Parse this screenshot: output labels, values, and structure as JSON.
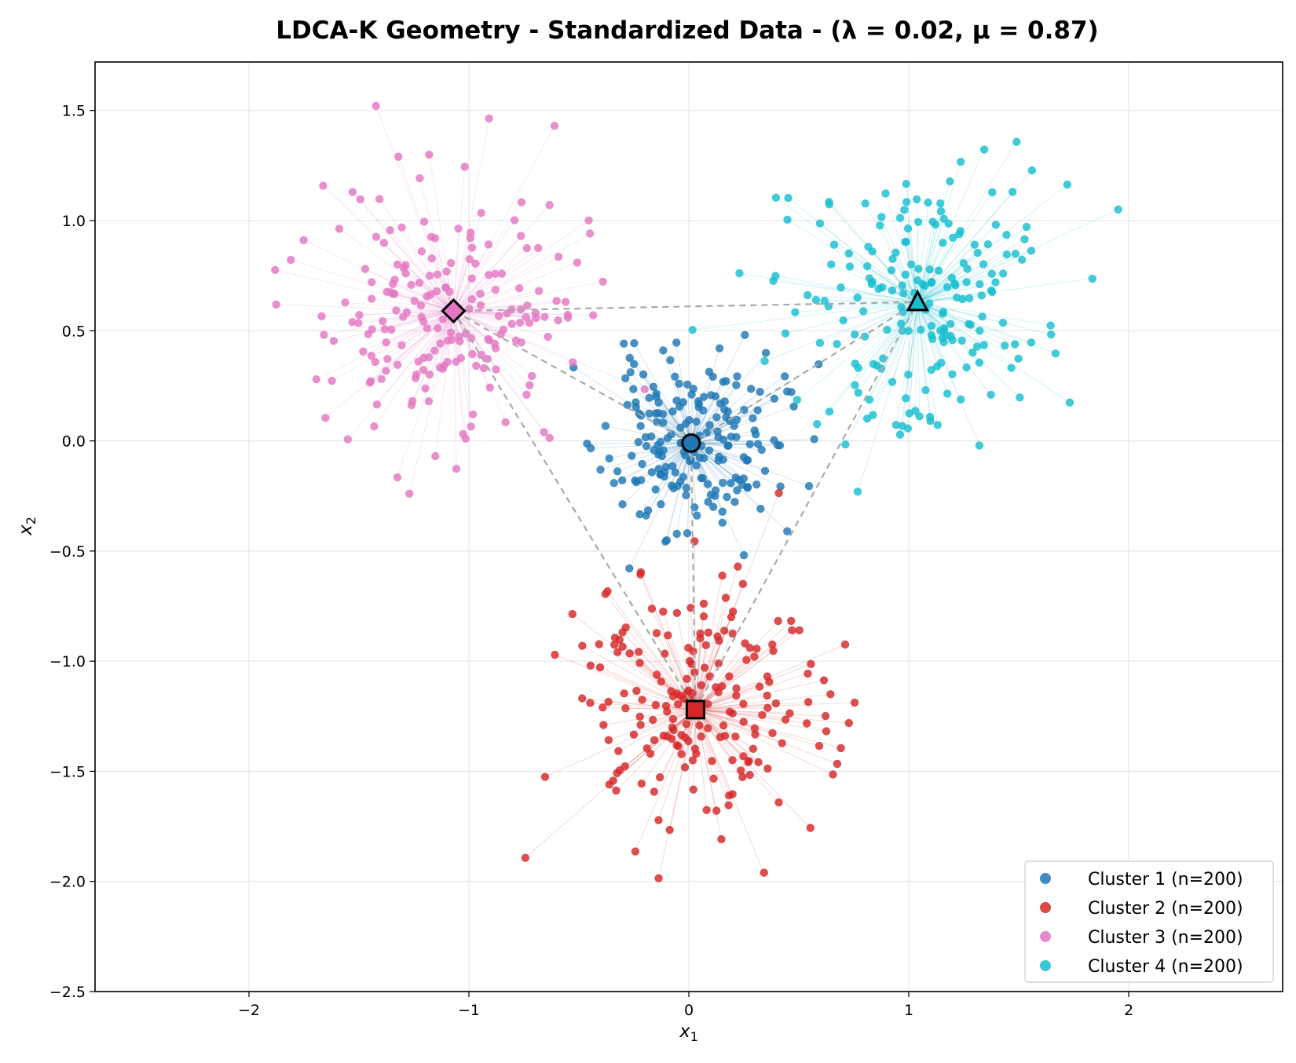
{
  "chart_data": {
    "type": "scatter",
    "title": "LDCA-K Geometry - Standardized Data - (λ = 0.02, μ = 0.87)",
    "xlabel": "x",
    "xlabel_sub": "1",
    "ylabel": "x",
    "ylabel_sub": "2",
    "xlim": [
      -2.7,
      2.7
    ],
    "ylim": [
      -2.5,
      1.72
    ],
    "xticks": [
      -2,
      -1,
      0,
      1,
      2
    ],
    "xtick_labels": [
      "−2",
      "−1",
      "0",
      "1",
      "2"
    ],
    "yticks": [
      -2.5,
      -2.0,
      -1.5,
      -1.0,
      -0.5,
      0.0,
      0.5,
      1.0,
      1.5
    ],
    "ytick_labels": [
      "−2.5",
      "−2.0",
      "−1.5",
      "−1.0",
      "−0.5",
      "0.0",
      "0.5",
      "1.0",
      "1.5"
    ],
    "grid": true,
    "legend_position": "bottom-right",
    "series": [
      {
        "name": "Cluster 1 (n=200)",
        "color": "#1f77b4",
        "n": 200,
        "centroid": [
          0.01,
          -0.01
        ],
        "spread": 0.2,
        "marker": "circle",
        "seed": 11
      },
      {
        "name": "Cluster 2 (n=200)",
        "color": "#d62728",
        "n": 200,
        "centroid": [
          0.03,
          -1.22
        ],
        "spread": 0.3,
        "marker": "square",
        "seed": 23
      },
      {
        "name": "Cluster 3 (n=200)",
        "color": "#e377c2",
        "n": 200,
        "centroid": [
          -1.07,
          0.59
        ],
        "spread": 0.3,
        "marker": "diamond",
        "seed": 37
      },
      {
        "name": "Cluster 4 (n=200)",
        "color": "#17becf",
        "n": 200,
        "centroid": [
          1.04,
          0.63
        ],
        "spread": 0.3,
        "marker": "triangle",
        "seed": 53
      }
    ],
    "centroid_links": [
      [
        0,
        1
      ],
      [
        0,
        2
      ],
      [
        0,
        3
      ],
      [
        1,
        2
      ],
      [
        1,
        3
      ],
      [
        2,
        3
      ]
    ],
    "link_color": "#a9a9a9"
  }
}
